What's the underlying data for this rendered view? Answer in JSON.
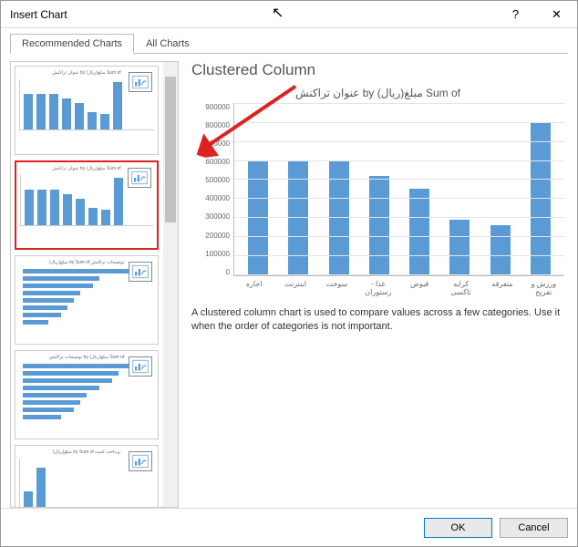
{
  "dialog": {
    "title": "Insert Chart",
    "tabs": {
      "recommended": "Recommended Charts",
      "all": "All Charts"
    },
    "ok": "OK",
    "cancel": "Cancel"
  },
  "heading": "Clustered Column",
  "chart": {
    "title": "Sum of مبلغ(ریال) by عنوان تراکنش",
    "ylim": [
      0,
      900000
    ],
    "ytick_step": 100000,
    "yticks": [
      "900000",
      "800000",
      "700000",
      "600000",
      "500000",
      "400000",
      "300000",
      "200000",
      "100000",
      "0"
    ],
    "categories": [
      "اجاره",
      "اینترنت",
      "سوخت",
      "غذا - رستوران",
      "قبوض",
      "کرایه تاکسی",
      "متفرقه",
      "ورزش و تفریح"
    ],
    "values": [
      600000,
      600000,
      600000,
      520000,
      450000,
      290000,
      260000,
      800000
    ],
    "bar_color": "#5b9bd5",
    "grid_color": "#e4e4e4",
    "bg": "#ffffff"
  },
  "description": "A clustered column chart is used to compare values across a few categories. Use it when the order of categories is not important.",
  "thumbs": [
    {
      "title": "Sum of مبلغ(ریال) by عنوان تراکنش",
      "kind": "column",
      "selected": false,
      "vals": [
        60,
        60,
        60,
        52,
        45,
        29,
        26,
        80
      ]
    },
    {
      "title": "Sum of مبلغ(ریال) by عنوان تراکنش",
      "kind": "column",
      "selected": true,
      "vals": [
        60,
        60,
        60,
        52,
        45,
        29,
        26,
        80
      ]
    },
    {
      "title": "توضیحات تراکنش by Sum of مبلغ(ریال)",
      "kind": "hbar",
      "selected": false,
      "vals": [
        90,
        60,
        55,
        45,
        40,
        35,
        30,
        20
      ]
    },
    {
      "title": "Sum of مبلغ(ریال) by توضیحات تراکنش",
      "kind": "hbar",
      "selected": false,
      "vals": [
        85,
        75,
        70,
        60,
        50,
        45,
        40,
        30
      ]
    },
    {
      "title": "پرداخت کننده by Sum of مبلغ(ریال)",
      "kind": "column",
      "selected": false,
      "vals": [
        30,
        70
      ]
    }
  ]
}
